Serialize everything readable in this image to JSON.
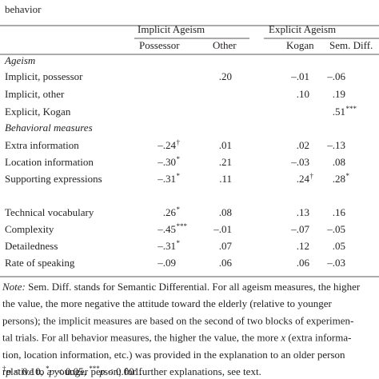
{
  "caption": "behavior",
  "table": {
    "groups": [
      "Implicit Ageism",
      "Explicit Ageism"
    ],
    "columns": [
      "Possessor",
      "Other",
      "Kogan",
      "Sem. Diff."
    ],
    "rows": [
      {
        "section": "Ageism"
      },
      {
        "label": "Implicit, possessor",
        "cells": [
          null,
          ".20",
          "–.01",
          "–.06"
        ]
      },
      {
        "label": "Implicit, other",
        "cells": [
          null,
          null,
          ".10",
          ".19"
        ]
      },
      {
        "label": "Explicit, Kogan",
        "cells": [
          null,
          null,
          null,
          {
            "text": ".51",
            "sup": "***"
          }
        ]
      },
      {
        "section": "Behavioral measures"
      },
      {
        "label": "Extra information",
        "cells": [
          {
            "text": "–.24",
            "sup": "†"
          },
          ".01",
          ".02",
          "–.13"
        ]
      },
      {
        "label": "Location information",
        "cells": [
          {
            "text": "–.30",
            "sup": "*"
          },
          ".21",
          "–.03",
          ".08"
        ]
      },
      {
        "label": "Supporting expressions",
        "cells": [
          {
            "text": "–.31",
            "sup": "*"
          },
          ".11",
          {
            "text": ".24",
            "sup": "†"
          },
          {
            "text": ".28",
            "sup": "*"
          }
        ]
      },
      {
        "label": "Technical vocabulary",
        "cells": [
          {
            "text": ".26",
            "sup": "*"
          },
          ".08",
          ".13",
          ".16"
        ]
      },
      {
        "label": "Complexity",
        "cells": [
          {
            "text": "–.45",
            "sup": "***"
          },
          "–.01",
          "–.07",
          "–.05"
        ]
      },
      {
        "label": "Detailedness",
        "cells": [
          {
            "text": "–.31",
            "sup": "*"
          },
          ".07",
          ".12",
          ".05"
        ]
      },
      {
        "label": "Rate of speaking",
        "cells": [
          "–.09",
          ".06",
          ".06",
          "–.03"
        ]
      }
    ]
  },
  "note": {
    "label": "Note:",
    "lines": [
      [
        " Sem. Diff. stands for Semantic Differential. For all ageism measures, the higher"
      ],
      [
        "the value, the more negative the attitude toward the elderly (relative to younger"
      ],
      [
        "persons); the implicit measures are based on the second of two blocks of experimen-"
      ],
      [
        "tal trials. For all behavior measures, the higher the value, the more ",
        {
          "text": "x",
          "italic": true
        },
        " (extra informa-"
      ],
      [
        "tion, location information, etc.) was provided in the explanation to an older person"
      ],
      [
        "relative to a younger person; for further explanations, see text."
      ]
    ],
    "footnote": [
      {
        "sym": "†",
        "var": "p",
        "text": " < 0.10, "
      },
      {
        "sym": "*",
        "var": "p",
        "text": " < 0.05, "
      },
      {
        "sym": "***",
        "var": "p",
        "text": " < 0.001."
      }
    ]
  }
}
